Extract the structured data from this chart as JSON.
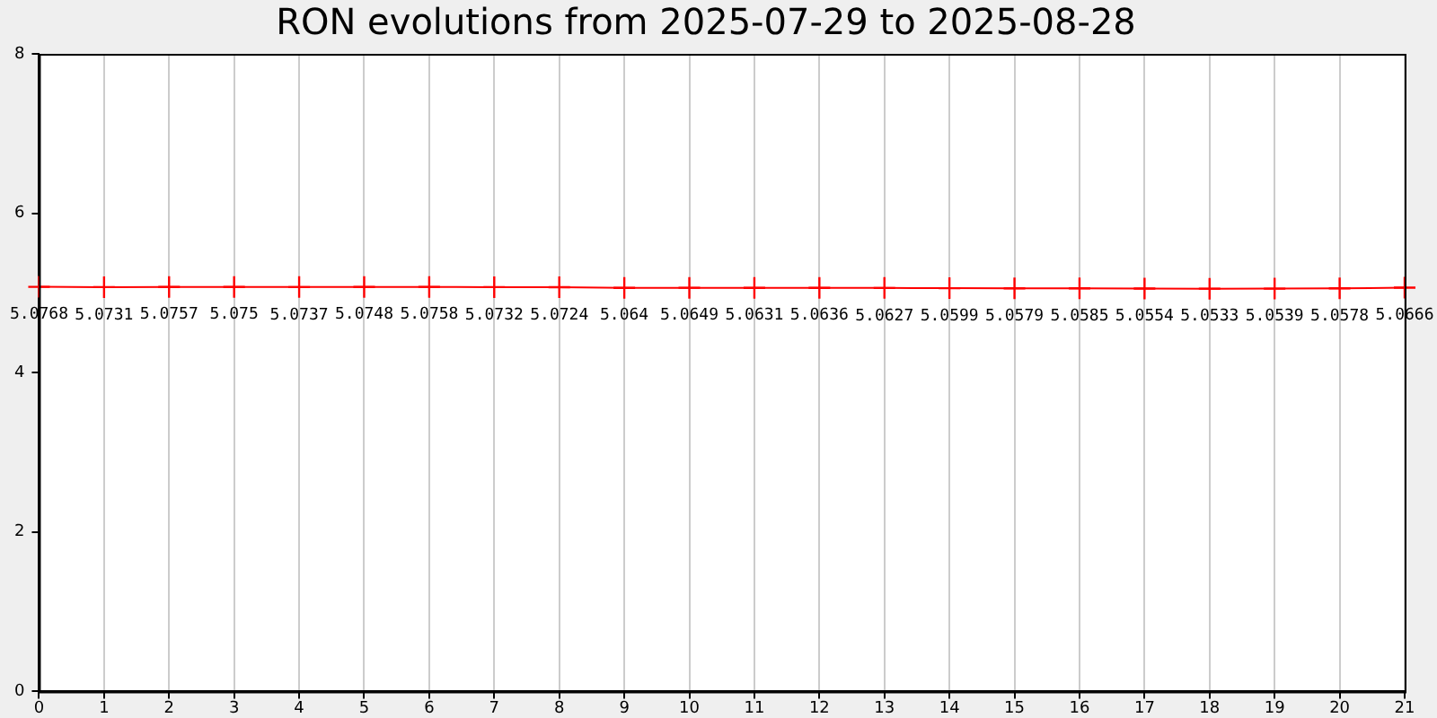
{
  "chart_data": {
    "type": "line",
    "title": "RON evolutions from 2025-07-29 to 2025-08-28",
    "x": [
      0,
      1,
      2,
      3,
      4,
      5,
      6,
      7,
      8,
      9,
      10,
      11,
      12,
      13,
      14,
      15,
      16,
      17,
      18,
      19,
      20,
      21
    ],
    "series": [
      {
        "color": "#ff0000",
        "values": [
          5.0768,
          5.0731,
          5.0757,
          5.075,
          5.0737,
          5.0748,
          5.0758,
          5.0732,
          5.0724,
          5.064,
          5.0649,
          5.0631,
          5.0636,
          5.0627,
          5.0599,
          5.0579,
          5.0585,
          5.0554,
          5.0533,
          5.0539,
          5.0578,
          5.0666
        ]
      }
    ],
    "xlim": [
      0,
      21
    ],
    "xticks": [
      0,
      1,
      2,
      3,
      4,
      5,
      6,
      7,
      8,
      9,
      10,
      11,
      12,
      13,
      14,
      15,
      16,
      17,
      18,
      19,
      20,
      21
    ],
    "ylim": [
      0,
      8
    ],
    "yticks": [
      0,
      2,
      4,
      6,
      8
    ],
    "grid": "x",
    "legend": false,
    "marker": "cross",
    "line_style": "solid",
    "data_labels": true
  }
}
